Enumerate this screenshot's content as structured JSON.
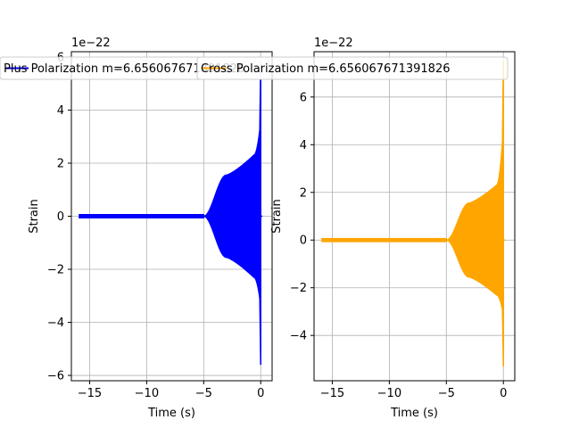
{
  "chart_data": [
    {
      "type": "line",
      "color": "#0000ff",
      "legend": "Plus Polarization m=6.656067671391826",
      "xlabel": "Time (s)",
      "ylabel": "Strain",
      "offset_text": "1e−22",
      "xlim": [
        -16.6,
        1.0
      ],
      "ylim": [
        -6.2,
        6.2
      ],
      "xticks": [
        -15,
        -10,
        -5,
        0
      ],
      "xtick_labels": [
        "−15",
        "−10",
        "−5",
        "0"
      ],
      "yticks": [
        -6,
        -4,
        -2,
        0,
        2,
        4,
        6
      ],
      "ytick_labels": [
        "−6",
        "−4",
        "−2",
        "0",
        "2",
        "4",
        "6"
      ],
      "grid": true,
      "legend_position": "top",
      "waveform": {
        "t_start": -15.9,
        "t_end": 0.0,
        "peak": 5.9,
        "trough": -5.6,
        "envelope_onset": -5.0,
        "plateau": 1.55,
        "pre_merger": 2.3
      }
    },
    {
      "type": "line",
      "color": "#ffa500",
      "legend": "Cross Polarization m=6.656067671391826",
      "xlabel": "Time (s)",
      "ylabel": "Strain",
      "offset_text": "1e−22",
      "xlim": [
        -16.6,
        1.0
      ],
      "ylim": [
        -5.9,
        7.9
      ],
      "xticks": [
        -15,
        -10,
        -5,
        0
      ],
      "xtick_labels": [
        "−15",
        "−10",
        "−5",
        "0"
      ],
      "yticks": [
        -4,
        -2,
        0,
        2,
        4,
        6
      ],
      "ytick_labels": [
        "−4",
        "−2",
        "0",
        "2",
        "4",
        "6"
      ],
      "grid": true,
      "legend_position": "top",
      "waveform": {
        "t_start": -15.9,
        "t_end": 0.0,
        "peak": 7.5,
        "trough": -5.3,
        "envelope_onset": -5.0,
        "plateau": 1.55,
        "pre_merger": 2.3
      }
    }
  ]
}
